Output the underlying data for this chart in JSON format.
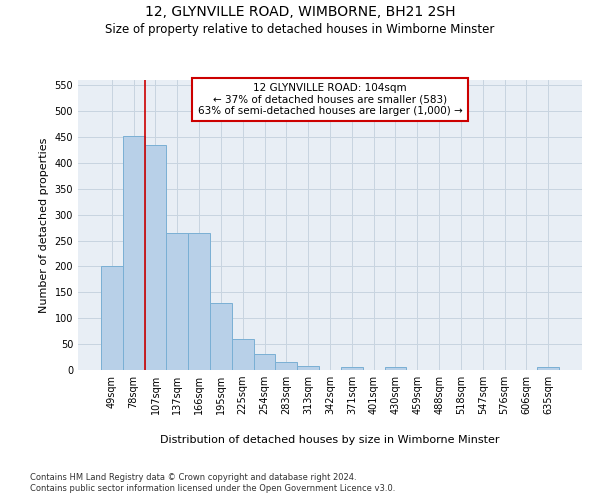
{
  "title": "12, GLYNVILLE ROAD, WIMBORNE, BH21 2SH",
  "subtitle": "Size of property relative to detached houses in Wimborne Minster",
  "xlabel": "Distribution of detached houses by size in Wimborne Minster",
  "ylabel": "Number of detached properties",
  "categories": [
    "49sqm",
    "78sqm",
    "107sqm",
    "137sqm",
    "166sqm",
    "195sqm",
    "225sqm",
    "254sqm",
    "283sqm",
    "313sqm",
    "342sqm",
    "371sqm",
    "401sqm",
    "430sqm",
    "459sqm",
    "488sqm",
    "518sqm",
    "547sqm",
    "576sqm",
    "606sqm",
    "635sqm"
  ],
  "values": [
    200,
    451,
    435,
    265,
    265,
    130,
    60,
    30,
    15,
    8,
    0,
    5,
    0,
    5,
    0,
    0,
    0,
    0,
    0,
    0,
    5
  ],
  "bar_color": "#b8d0e8",
  "bar_edge_color": "#7aafd4",
  "annotation_text_line1": "12 GLYNVILLE ROAD: 104sqm",
  "annotation_text_line2": "← 37% of detached houses are smaller (583)",
  "annotation_text_line3": "63% of semi-detached houses are larger (1,000) →",
  "annotation_box_color": "#ffffff",
  "annotation_box_edge": "#cc0000",
  "vline_color": "#cc0000",
  "ylim": [
    0,
    560
  ],
  "yticks": [
    0,
    50,
    100,
    150,
    200,
    250,
    300,
    350,
    400,
    450,
    500,
    550
  ],
  "grid_color": "#c8d4e0",
  "bg_color": "#e8eef5",
  "footnote1": "Contains HM Land Registry data © Crown copyright and database right 2024.",
  "footnote2": "Contains public sector information licensed under the Open Government Licence v3.0.",
  "title_fontsize": 10,
  "subtitle_fontsize": 8.5,
  "tick_fontsize": 7,
  "label_fontsize": 8,
  "ann_fontsize": 7.5,
  "footnote_fontsize": 6
}
